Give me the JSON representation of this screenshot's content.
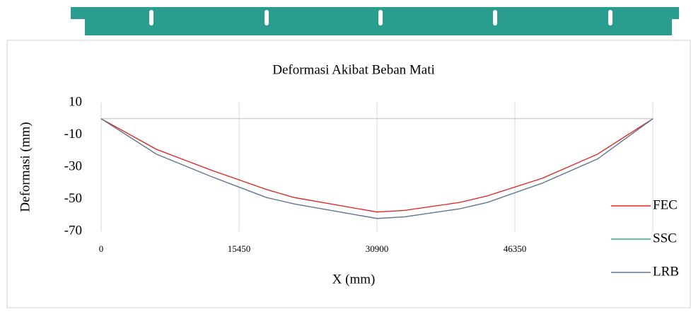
{
  "chart_data": {
    "type": "line",
    "title": "Deformasi Akibat Beban Mati",
    "x_label": "X (mm)",
    "y_label": "Deformasi (mm)",
    "x": [
      0,
      6180,
      12360,
      18540,
      21630,
      27810,
      30900,
      34000,
      40170,
      43260,
      49440,
      55620,
      61800
    ],
    "series": [
      {
        "name": "FEC",
        "color": "#e3201b",
        "values": [
          0,
          -19,
          -32,
          -44,
          -49,
          -55,
          -58,
          -57,
          -52,
          -48,
          -37,
          -22,
          0
        ]
      },
      {
        "name": "SSC",
        "color": "#2bb673",
        "values": [
          0,
          -22,
          -36,
          -49,
          -53,
          -59,
          -62,
          -61,
          -56,
          -52,
          -40,
          -25,
          0
        ]
      },
      {
        "name": "LRB",
        "color": "#6b7394",
        "values": [
          0,
          -22,
          -36,
          -49,
          -53,
          -59,
          -62,
          -61,
          -56,
          -52,
          -40,
          -25,
          0
        ]
      }
    ],
    "xlim": [
      0,
      61800
    ],
    "xticks": [
      0,
      15450,
      30900,
      46350
    ],
    "ylim": [
      -70,
      10
    ],
    "yticks": [
      10,
      -10,
      -30,
      -50,
      -70
    ],
    "grid": true,
    "legend": "right"
  }
}
